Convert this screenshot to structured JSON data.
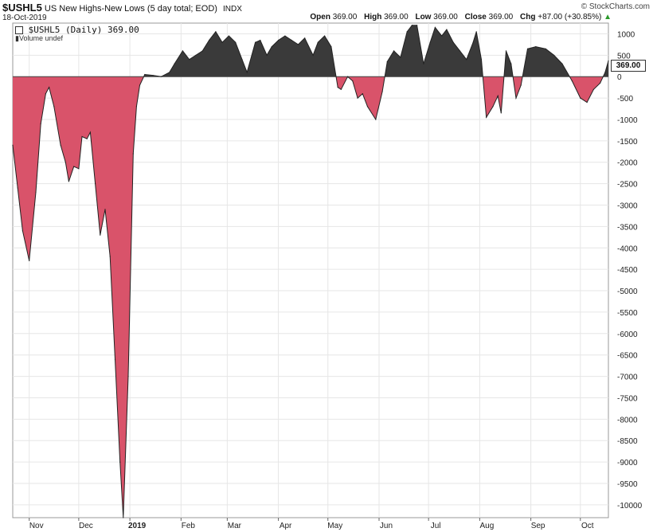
{
  "header": {
    "symbol": "$USHL5",
    "description": "US New Highs-New Lows (5 day total; EOD)",
    "exchange": "INDX",
    "date": "18-Oct-2019",
    "brand": "© StockCharts.com",
    "open_label": "Open",
    "open": "369.00",
    "high_label": "High",
    "high": "369.00",
    "low_label": "Low",
    "low": "369.00",
    "close_label": "Close",
    "close": "369.00",
    "chg_label": "Chg",
    "chg": "+87.00 (+30.85%)"
  },
  "legend": {
    "series": "$USHL5 (Daily) 369.00",
    "volume": "Volume undef"
  },
  "last_value": "369.00",
  "colors": {
    "positive": "#3a3a3a",
    "negative": "#d9536a",
    "grid": "#e6e6e6"
  },
  "chart_data": {
    "type": "area",
    "title": "$USHL5 US New Highs-New Lows (5 day total; EOD)",
    "ylim": [
      -10300,
      1250
    ],
    "y_ticks": [
      1000,
      500,
      0,
      -500,
      -1000,
      -1500,
      -2000,
      -2500,
      -3000,
      -3500,
      -4000,
      -4500,
      -5000,
      -5500,
      -6000,
      -6500,
      -7000,
      -7500,
      -8000,
      -8500,
      -9000,
      -9500,
      -10000
    ],
    "y_tick_labels": [
      "1000",
      "500",
      "0",
      "-500",
      "-1000",
      "-1500",
      "-2000",
      "-2500",
      "-3000",
      "-3500",
      "-4000",
      "-4500",
      "-5000",
      "-5500",
      "-6000",
      "-6500",
      "-7000",
      "-7500",
      "-8000",
      "-8500",
      "-9000",
      "-9500",
      "-10000"
    ],
    "x_range": [
      "2018-10-22",
      "2019-10-18"
    ],
    "x_ticks": [
      {
        "date": "2018-11-01",
        "label": "Nov"
      },
      {
        "date": "2018-12-01",
        "label": "Dec"
      },
      {
        "date": "2019-01-01",
        "label": "2019"
      },
      {
        "date": "2019-02-01",
        "label": "Feb"
      },
      {
        "date": "2019-03-01",
        "label": "Mar"
      },
      {
        "date": "2019-04-01",
        "label": "Apr"
      },
      {
        "date": "2019-05-01",
        "label": "May"
      },
      {
        "date": "2019-06-01",
        "label": "Jun"
      },
      {
        "date": "2019-07-01",
        "label": "Jul"
      },
      {
        "date": "2019-08-01",
        "label": "Aug"
      },
      {
        "date": "2019-09-01",
        "label": "Sep"
      },
      {
        "date": "2019-10-01",
        "label": "Oct"
      }
    ],
    "series": [
      {
        "values": [
          [
            "2018-10-22",
            -1600
          ],
          [
            "2018-10-25",
            -2600
          ],
          [
            "2018-10-28",
            -3600
          ],
          [
            "2018-11-01",
            -4300
          ],
          [
            "2018-11-05",
            -2700
          ],
          [
            "2018-11-08",
            -1100
          ],
          [
            "2018-11-11",
            -400
          ],
          [
            "2018-11-13",
            -250
          ],
          [
            "2018-11-16",
            -700
          ],
          [
            "2018-11-20",
            -1600
          ],
          [
            "2018-11-23",
            -2000
          ],
          [
            "2018-11-25",
            -2450
          ],
          [
            "2018-11-28",
            -2100
          ],
          [
            "2018-12-01",
            -2150
          ],
          [
            "2018-12-03",
            -1400
          ],
          [
            "2018-12-06",
            -1450
          ],
          [
            "2018-12-08",
            -1300
          ],
          [
            "2018-12-11",
            -2500
          ],
          [
            "2018-12-14",
            -3700
          ],
          [
            "2018-12-17",
            -3100
          ],
          [
            "2018-12-20",
            -4200
          ],
          [
            "2018-12-23",
            -6600
          ],
          [
            "2018-12-26",
            -9000
          ],
          [
            "2018-12-28",
            -10300
          ],
          [
            "2018-12-31",
            -7000
          ],
          [
            "2019-01-03",
            -1800
          ],
          [
            "2019-01-05",
            -700
          ],
          [
            "2019-01-07",
            -200
          ],
          [
            "2019-01-10",
            50
          ],
          [
            "2019-01-15",
            30
          ],
          [
            "2019-01-20",
            0
          ],
          [
            "2019-01-25",
            100
          ],
          [
            "2019-01-28",
            300
          ],
          [
            "2019-02-02",
            600
          ],
          [
            "2019-02-06",
            400
          ],
          [
            "2019-02-10",
            500
          ],
          [
            "2019-02-14",
            600
          ],
          [
            "2019-02-18",
            850
          ],
          [
            "2019-02-22",
            1050
          ],
          [
            "2019-02-26",
            800
          ],
          [
            "2019-03-02",
            950
          ],
          [
            "2019-03-06",
            800
          ],
          [
            "2019-03-10",
            400
          ],
          [
            "2019-03-13",
            100
          ],
          [
            "2019-03-18",
            800
          ],
          [
            "2019-03-21",
            850
          ],
          [
            "2019-03-25",
            500
          ],
          [
            "2019-03-28",
            700
          ],
          [
            "2019-04-01",
            850
          ],
          [
            "2019-04-05",
            950
          ],
          [
            "2019-04-09",
            850
          ],
          [
            "2019-04-13",
            750
          ],
          [
            "2019-04-17",
            900
          ],
          [
            "2019-04-22",
            500
          ],
          [
            "2019-04-25",
            800
          ],
          [
            "2019-04-29",
            950
          ],
          [
            "2019-05-03",
            700
          ],
          [
            "2019-05-07",
            -250
          ],
          [
            "2019-05-09",
            -300
          ],
          [
            "2019-05-13",
            0
          ],
          [
            "2019-05-16",
            -100
          ],
          [
            "2019-05-19",
            -500
          ],
          [
            "2019-05-22",
            -400
          ],
          [
            "2019-05-25",
            -700
          ],
          [
            "2019-05-30",
            -1000
          ],
          [
            "2019-06-03",
            -350
          ],
          [
            "2019-06-06",
            350
          ],
          [
            "2019-06-10",
            600
          ],
          [
            "2019-06-14",
            450
          ],
          [
            "2019-06-18",
            1050
          ],
          [
            "2019-06-21",
            1200
          ],
          [
            "2019-06-24",
            1200
          ],
          [
            "2019-06-28",
            300
          ],
          [
            "2019-07-02",
            800
          ],
          [
            "2019-07-05",
            1150
          ],
          [
            "2019-07-09",
            950
          ],
          [
            "2019-07-12",
            1100
          ],
          [
            "2019-07-16",
            800
          ],
          [
            "2019-07-20",
            600
          ],
          [
            "2019-07-24",
            400
          ],
          [
            "2019-07-28",
            800
          ],
          [
            "2019-07-30",
            1050
          ],
          [
            "2019-08-02",
            400
          ],
          [
            "2019-08-05",
            -950
          ],
          [
            "2019-08-09",
            -700
          ],
          [
            "2019-08-12",
            -450
          ],
          [
            "2019-08-14",
            -850
          ],
          [
            "2019-08-17",
            600
          ],
          [
            "2019-08-20",
            300
          ],
          [
            "2019-08-23",
            -500
          ],
          [
            "2019-08-26",
            -200
          ],
          [
            "2019-08-30",
            650
          ],
          [
            "2019-09-04",
            700
          ],
          [
            "2019-09-10",
            650
          ],
          [
            "2019-09-15",
            500
          ],
          [
            "2019-09-20",
            300
          ],
          [
            "2019-09-26",
            -100
          ],
          [
            "2019-10-01",
            -500
          ],
          [
            "2019-10-05",
            -600
          ],
          [
            "2019-10-09",
            -300
          ],
          [
            "2019-10-13",
            -150
          ],
          [
            "2019-10-16",
            100
          ],
          [
            "2019-10-18",
            369
          ]
        ]
      }
    ]
  }
}
